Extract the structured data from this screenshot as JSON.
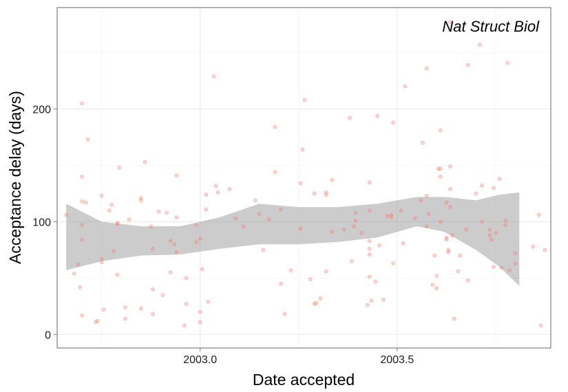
{
  "chart_data": {
    "type": "scatter",
    "xlabel": "Date accepted",
    "ylabel": "Acceptance delay (days)",
    "annotation": "Nat Struct Biol",
    "xlim": [
      2002.637,
      2003.89
    ],
    "ylim": [
      -12,
      290
    ],
    "x_ticks": [
      2003.0,
      2003.5
    ],
    "x_tick_labels": [
      "2003.0",
      "2003.5"
    ],
    "y_ticks": [
      0,
      100,
      200
    ],
    "y_tick_labels": [
      "0",
      "100",
      "200"
    ],
    "grid": true,
    "point_color": "#F8766D",
    "band_color": "#999999",
    "smooth": {
      "x": [
        2002.66,
        2002.75,
        2002.85,
        2002.95,
        2003.05,
        2003.15,
        2003.25,
        2003.35,
        2003.45,
        2003.55,
        2003.62,
        2003.7,
        2003.76,
        2003.81
      ],
      "upper": [
        116,
        100,
        96,
        96,
        104,
        116,
        113,
        113,
        116,
        122,
        122,
        119,
        124,
        126
      ],
      "lower": [
        57,
        65,
        70,
        71,
        76,
        80,
        80,
        82,
        86,
        96,
        91,
        75,
        60,
        43
      ]
    },
    "points": [
      [
        2002.66,
        106
      ],
      [
        2002.68,
        54
      ],
      [
        2002.69,
        62
      ],
      [
        2002.695,
        42
      ],
      [
        2002.7,
        205
      ],
      [
        2002.7,
        140
      ],
      [
        2002.7,
        118
      ],
      [
        2002.7,
        97
      ],
      [
        2002.7,
        84
      ],
      [
        2002.7,
        17
      ],
      [
        2002.71,
        117
      ],
      [
        2002.715,
        173
      ],
      [
        2002.735,
        11
      ],
      [
        2002.74,
        12
      ],
      [
        2002.75,
        123
      ],
      [
        2002.75,
        67
      ],
      [
        2002.75,
        64
      ],
      [
        2002.755,
        22
      ],
      [
        2002.77,
        110
      ],
      [
        2002.775,
        115
      ],
      [
        2002.78,
        74
      ],
      [
        2002.79,
        99
      ],
      [
        2002.79,
        98
      ],
      [
        2002.79,
        53
      ],
      [
        2002.795,
        148
      ],
      [
        2002.81,
        24
      ],
      [
        2002.81,
        14
      ],
      [
        2002.82,
        102
      ],
      [
        2002.85,
        121
      ],
      [
        2002.85,
        119
      ],
      [
        2002.85,
        23
      ],
      [
        2002.86,
        153
      ],
      [
        2002.875,
        96
      ],
      [
        2002.88,
        76
      ],
      [
        2002.88,
        18
      ],
      [
        2002.88,
        40
      ],
      [
        2002.895,
        109
      ],
      [
        2002.905,
        35
      ],
      [
        2002.915,
        108
      ],
      [
        2002.925,
        83
      ],
      [
        2002.925,
        55
      ],
      [
        2002.935,
        80
      ],
      [
        2002.94,
        73
      ],
      [
        2002.94,
        141
      ],
      [
        2002.94,
        104
      ],
      [
        2002.96,
        8
      ],
      [
        2002.965,
        27
      ],
      [
        2002.965,
        50
      ],
      [
        2002.99,
        82
      ],
      [
        2002.99,
        97
      ],
      [
        2003.0,
        85
      ],
      [
        2003.0,
        20
      ],
      [
        2003.0,
        11
      ],
      [
        2003.005,
        58
      ],
      [
        2003.015,
        124
      ],
      [
        2003.015,
        111
      ],
      [
        2003.02,
        29
      ],
      [
        2003.035,
        229
      ],
      [
        2003.04,
        132
      ],
      [
        2003.045,
        126
      ],
      [
        2003.075,
        129
      ],
      [
        2003.09,
        103
      ],
      [
        2003.11,
        96
      ],
      [
        2003.14,
        119
      ],
      [
        2003.15,
        107
      ],
      [
        2003.16,
        75
      ],
      [
        2003.175,
        102
      ],
      [
        2003.19,
        184
      ],
      [
        2003.19,
        144
      ],
      [
        2003.205,
        111
      ],
      [
        2003.205,
        45
      ],
      [
        2003.215,
        18
      ],
      [
        2003.23,
        57
      ],
      [
        2003.255,
        134
      ],
      [
        2003.255,
        94
      ],
      [
        2003.26,
        164
      ],
      [
        2003.265,
        208
      ],
      [
        2003.28,
        49
      ],
      [
        2003.29,
        125
      ],
      [
        2003.29,
        27
      ],
      [
        2003.295,
        28
      ],
      [
        2003.305,
        32
      ],
      [
        2003.32,
        126
      ],
      [
        2003.32,
        124
      ],
      [
        2003.32,
        56
      ],
      [
        2003.335,
        137
      ],
      [
        2003.335,
        91
      ],
      [
        2003.365,
        93
      ],
      [
        2003.38,
        192
      ],
      [
        2003.385,
        65
      ],
      [
        2003.39,
        96
      ],
      [
        2003.395,
        108
      ],
      [
        2003.395,
        101
      ],
      [
        2003.41,
        90
      ],
      [
        2003.425,
        26
      ],
      [
        2003.43,
        135
      ],
      [
        2003.43,
        110
      ],
      [
        2003.43,
        83
      ],
      [
        2003.43,
        76
      ],
      [
        2003.43,
        71
      ],
      [
        2003.43,
        51
      ],
      [
        2003.435,
        30
      ],
      [
        2003.445,
        47
      ],
      [
        2003.45,
        194
      ],
      [
        2003.455,
        79
      ],
      [
        2003.465,
        31
      ],
      [
        2003.475,
        105
      ],
      [
        2003.485,
        106
      ],
      [
        2003.485,
        104
      ],
      [
        2003.49,
        188
      ],
      [
        2003.49,
        63
      ],
      [
        2003.51,
        110
      ],
      [
        2003.515,
        81
      ],
      [
        2003.52,
        220
      ],
      [
        2003.545,
        103
      ],
      [
        2003.56,
        119
      ],
      [
        2003.565,
        170
      ],
      [
        2003.575,
        236
      ],
      [
        2003.575,
        123
      ],
      [
        2003.575,
        96
      ],
      [
        2003.58,
        107
      ],
      [
        2003.59,
        44
      ],
      [
        2003.595,
        70
      ],
      [
        2003.6,
        41
      ],
      [
        2003.6,
        52
      ],
      [
        2003.605,
        147
      ],
      [
        2003.61,
        181
      ],
      [
        2003.61,
        147
      ],
      [
        2003.61,
        140
      ],
      [
        2003.61,
        100
      ],
      [
        2003.625,
        117
      ],
      [
        2003.625,
        86
      ],
      [
        2003.625,
        84
      ],
      [
        2003.63,
        75
      ],
      [
        2003.63,
        73
      ],
      [
        2003.635,
        277
      ],
      [
        2003.635,
        149
      ],
      [
        2003.635,
        129
      ],
      [
        2003.635,
        113
      ],
      [
        2003.64,
        88
      ],
      [
        2003.645,
        14
      ],
      [
        2003.655,
        56
      ],
      [
        2003.66,
        70
      ],
      [
        2003.675,
        93
      ],
      [
        2003.68,
        239
      ],
      [
        2003.68,
        48
      ],
      [
        2003.7,
        125
      ],
      [
        2003.71,
        257
      ],
      [
        2003.715,
        132
      ],
      [
        2003.715,
        100
      ],
      [
        2003.735,
        93
      ],
      [
        2003.735,
        88
      ],
      [
        2003.74,
        84
      ],
      [
        2003.745,
        130
      ],
      [
        2003.745,
        60
      ],
      [
        2003.75,
        90
      ],
      [
        2003.76,
        138
      ],
      [
        2003.765,
        59
      ],
      [
        2003.775,
        101
      ],
      [
        2003.775,
        97
      ],
      [
        2003.78,
        241
      ],
      [
        2003.785,
        57
      ],
      [
        2003.8,
        72
      ],
      [
        2003.8,
        63
      ],
      [
        2003.845,
        78
      ],
      [
        2003.86,
        106
      ],
      [
        2003.865,
        8
      ],
      [
        2003.875,
        75
      ]
    ]
  }
}
